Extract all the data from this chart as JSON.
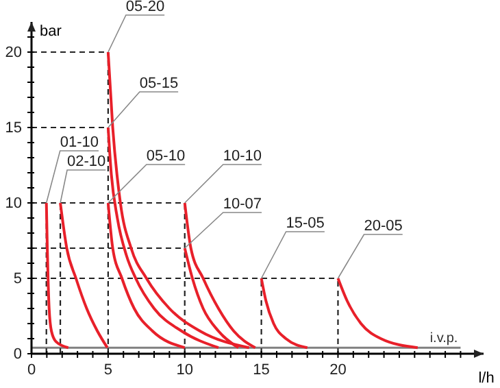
{
  "chart_data": {
    "type": "line",
    "xlabel": "l/h",
    "ylabel": "bar",
    "xlim": [
      0,
      29.5
    ],
    "ylim": [
      0,
      22
    ],
    "xticks": [
      0,
      {
        "value": 1,
        "label": null
      },
      {
        "value": 2,
        "label": null
      },
      {
        "value": 3,
        "label": null
      },
      {
        "value": 4,
        "label": null
      },
      5,
      {
        "value": 6,
        "label": null
      },
      {
        "value": 7,
        "label": null
      },
      {
        "value": 8,
        "label": null
      },
      {
        "value": 9,
        "label": null
      },
      10,
      {
        "value": 11,
        "label": null
      },
      {
        "value": 12,
        "label": null
      },
      {
        "value": 13,
        "label": null
      },
      {
        "value": 14,
        "label": null
      },
      15,
      {
        "value": 16,
        "label": null
      },
      {
        "value": 17,
        "label": null
      },
      {
        "value": 18,
        "label": null
      },
      {
        "value": 19,
        "label": null
      },
      20,
      {
        "value": 21,
        "label": null
      },
      {
        "value": 22,
        "label": null
      },
      {
        "value": 23,
        "label": null
      },
      {
        "value": 24,
        "label": null
      },
      {
        "value": 25,
        "label": null
      },
      {
        "value": 26,
        "label": null
      },
      {
        "value": 27,
        "label": null
      },
      {
        "value": 28,
        "label": null
      }
    ],
    "yticks": [
      0,
      {
        "value": 1,
        "label": null
      },
      {
        "value": 2,
        "label": null
      },
      {
        "value": 3,
        "label": null
      },
      {
        "value": 4,
        "label": null
      },
      5,
      {
        "value": 6,
        "label": null
      },
      {
        "value": 7,
        "label": null
      },
      {
        "value": 8,
        "label": null
      },
      {
        "value": 9,
        "label": null
      },
      10,
      {
        "value": 11,
        "label": null
      },
      {
        "value": 12,
        "label": null
      },
      {
        "value": 13,
        "label": null
      },
      {
        "value": 14,
        "label": null
      },
      15,
      {
        "value": 16,
        "label": null
      },
      {
        "value": 17,
        "label": null
      },
      {
        "value": 18,
        "label": null
      },
      {
        "value": 19,
        "label": null
      },
      20,
      {
        "value": 21,
        "label": null
      }
    ],
    "grid": false,
    "marker": "none",
    "line_style": "solid",
    "ref_lines": [
      {
        "axis": "y",
        "value": 0.4,
        "label": "i.v.p.",
        "color": "#808080"
      },
      {
        "axis": "x",
        "value": 0.97,
        "color": "#222222",
        "line_style": "dashed"
      },
      {
        "axis": "x",
        "value": 1.88,
        "color": "#222222",
        "line_style": "dashed"
      },
      {
        "axis": "x",
        "value": 5,
        "color": "#222222",
        "line_style": "dashed"
      },
      {
        "axis": "x",
        "value": 10,
        "color": "#222222",
        "line_style": "dashed"
      },
      {
        "axis": "x",
        "value": 15,
        "color": "#222222",
        "line_style": "dashed"
      },
      {
        "axis": "x",
        "value": 20,
        "color": "#222222",
        "line_style": "dashed"
      },
      {
        "axis": "y",
        "value": 20,
        "color": "#222222",
        "line_style": "dashed"
      },
      {
        "axis": "y",
        "value": 15,
        "color": "#222222",
        "line_style": "dashed"
      },
      {
        "axis": "y",
        "value": 10,
        "color": "#222222",
        "line_style": "dashed"
      },
      {
        "axis": "y",
        "value": 7,
        "color": "#222222",
        "line_style": "dashed"
      },
      {
        "axis": "y",
        "value": 5,
        "color": "#222222",
        "line_style": "dashed"
      }
    ],
    "series": [
      {
        "name": "05-20",
        "color": "#e8202a",
        "x": [
          5,
          5.3,
          5.8,
          6.5,
          7.5,
          9,
          11,
          14.2
        ],
        "values": [
          20,
          15,
          10,
          7,
          5,
          3,
          1.5,
          0.4
        ]
      },
      {
        "name": "05-15",
        "color": "#e8202a",
        "x": [
          5,
          5.2,
          5.6,
          6.2,
          6.8,
          8,
          9.8,
          12.2
        ],
        "values": [
          15,
          12,
          9,
          6.5,
          5,
          3,
          1.5,
          0.4
        ]
      },
      {
        "name": "01-10",
        "color": "#e8202a",
        "x": [
          0.97,
          1.03,
          1.08,
          1.15,
          1.3,
          1.6,
          2.4
        ],
        "values": [
          10,
          7,
          5,
          3,
          1.5,
          0.8,
          0.4
        ]
      },
      {
        "name": "02-10",
        "color": "#e8202a",
        "x": [
          1.88,
          2.3,
          2.9,
          3.6,
          4.3,
          4.95
        ],
        "values": [
          10,
          7,
          5,
          3,
          1.5,
          0.4
        ]
      },
      {
        "name": "05-10",
        "color": "#e8202a",
        "x": [
          5,
          5.3,
          5.9,
          6.7,
          7.9,
          10
        ],
        "values": [
          10,
          7,
          5,
          3,
          1.5,
          0.4
        ]
      },
      {
        "name": "10-10",
        "color": "#e8202a",
        "x": [
          10,
          10.4,
          11.2,
          12.2,
          13.2,
          14.6
        ],
        "values": [
          10,
          7,
          5,
          3,
          1.5,
          0.4
        ]
      },
      {
        "name": "10-07",
        "color": "#e8202a",
        "x": [
          10,
          10.5,
          11.2,
          12.2,
          13.5
        ],
        "values": [
          7,
          5,
          3,
          1.5,
          0.4
        ]
      },
      {
        "name": "15-05",
        "color": "#e8202a",
        "x": [
          15,
          15.3,
          15.8,
          16.6,
          18
        ],
        "values": [
          5,
          3.5,
          2,
          1,
          0.4
        ]
      },
      {
        "name": "20-05",
        "color": "#e8202a",
        "x": [
          20,
          20.6,
          21.5,
          22.8,
          25.2
        ],
        "values": [
          5,
          3.5,
          2,
          1,
          0.4
        ]
      }
    ]
  }
}
